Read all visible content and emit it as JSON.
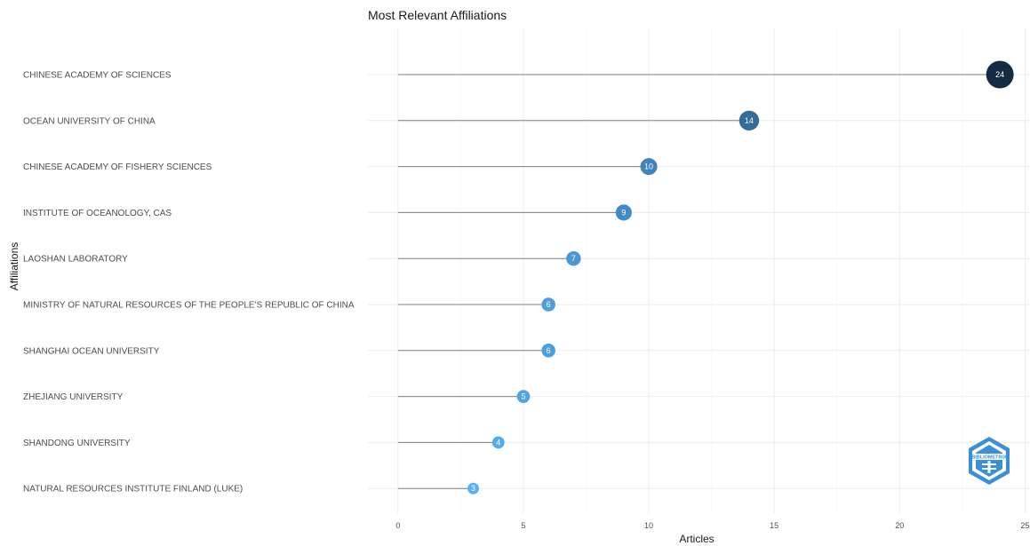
{
  "chart_data": {
    "type": "lollipop",
    "title": "Most Relevant Affiliations",
    "xlabel": "Articles",
    "ylabel": "Affiliations",
    "xlim": [
      -1.2,
      25.2
    ],
    "xticks": [
      0,
      5,
      10,
      15,
      20,
      25
    ],
    "grid": true,
    "categories": [
      "CHINESE ACADEMY OF SCIENCES",
      "OCEAN UNIVERSITY OF CHINA",
      "CHINESE ACADEMY OF FISHERY SCIENCES",
      "INSTITUTE OF OCEANOLOGY, CAS",
      "LAOSHAN LABORATORY",
      "MINISTRY OF NATURAL RESOURCES OF THE PEOPLE'S REPUBLIC OF CHINA",
      "SHANGHAI OCEAN UNIVERSITY",
      "ZHEJIANG UNIVERSITY",
      "SHANDONG UNIVERSITY",
      "NATURAL RESOURCES INSTITUTE FINLAND (LUKE)"
    ],
    "values": [
      24,
      14,
      10,
      9,
      7,
      6,
      6,
      5,
      4,
      3
    ],
    "colors": {
      "dot_low": "#56b1f7",
      "dot_high": "#132b43",
      "stem": "#7f7f7f",
      "grid_major": "#ebebeb",
      "grid_minor": "#f5f5f5"
    },
    "logo": {
      "text": "BIBLIOMETRIX",
      "color": "#3a8fd6"
    }
  }
}
